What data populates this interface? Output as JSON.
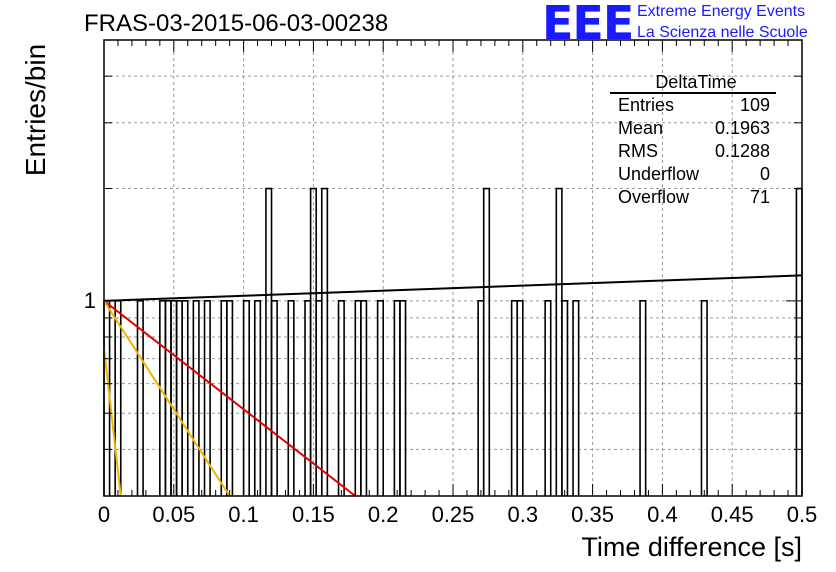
{
  "header": {
    "title": "FRAS-03-2015-06-03-00238",
    "logo_text": "EEE",
    "logo_line1": "Extreme Energy Events",
    "logo_line2": "La Scienza nelle Scuole",
    "logo_color": "#1a1aff"
  },
  "stats_box": {
    "title": "DeltaTime",
    "rows": [
      {
        "key": "Entries",
        "value": "109"
      },
      {
        "key": "Mean",
        "value": "0.1963"
      },
      {
        "key": "RMS",
        "value": "0.1288"
      },
      {
        "key": "Underflow",
        "value": "0"
      },
      {
        "key": "Overflow",
        "value": "71"
      }
    ]
  },
  "chart_data": {
    "type": "bar",
    "title": "FRAS-03-2015-06-03-00238",
    "xlabel": "Time difference [s]",
    "ylabel": "Entries/bin",
    "xlim": [
      0,
      0.5
    ],
    "ylim": [
      0.3,
      5
    ],
    "yscale": "log",
    "grid": true,
    "x_ticks": [
      "0",
      "0.05",
      "0.1",
      "0.15",
      "0.2",
      "0.25",
      "0.3",
      "0.35",
      "0.4",
      "0.45",
      "0.5"
    ],
    "x_tick_values": [
      0,
      0.05,
      0.1,
      0.15,
      0.2,
      0.25,
      0.3,
      0.35,
      0.4,
      0.45,
      0.5
    ],
    "y_ticks": [
      "1"
    ],
    "y_tick_values": [
      1
    ],
    "bin_width": 0.004,
    "bins": [
      {
        "x": 0.0,
        "y": 1
      },
      {
        "x": 0.008,
        "y": 1
      },
      {
        "x": 0.024,
        "y": 1
      },
      {
        "x": 0.04,
        "y": 1
      },
      {
        "x": 0.044,
        "y": 1
      },
      {
        "x": 0.048,
        "y": 1
      },
      {
        "x": 0.052,
        "y": 1
      },
      {
        "x": 0.056,
        "y": 1
      },
      {
        "x": 0.064,
        "y": 1
      },
      {
        "x": 0.072,
        "y": 1
      },
      {
        "x": 0.084,
        "y": 1
      },
      {
        "x": 0.088,
        "y": 1
      },
      {
        "x": 0.1,
        "y": 1
      },
      {
        "x": 0.108,
        "y": 1
      },
      {
        "x": 0.12,
        "y": 1
      },
      {
        "x": 0.132,
        "y": 1
      },
      {
        "x": 0.116,
        "y": 2
      },
      {
        "x": 0.148,
        "y": 2
      },
      {
        "x": 0.144,
        "y": 1
      },
      {
        "x": 0.152,
        "y": 1
      },
      {
        "x": 0.156,
        "y": 2
      },
      {
        "x": 0.168,
        "y": 1
      },
      {
        "x": 0.18,
        "y": 1
      },
      {
        "x": 0.184,
        "y": 1
      },
      {
        "x": 0.196,
        "y": 1
      },
      {
        "x": 0.208,
        "y": 1
      },
      {
        "x": 0.212,
        "y": 1
      },
      {
        "x": 0.272,
        "y": 2
      },
      {
        "x": 0.268,
        "y": 1
      },
      {
        "x": 0.292,
        "y": 1
      },
      {
        "x": 0.296,
        "y": 1
      },
      {
        "x": 0.316,
        "y": 1
      },
      {
        "x": 0.324,
        "y": 2
      },
      {
        "x": 0.328,
        "y": 1
      },
      {
        "x": 0.336,
        "y": 1
      },
      {
        "x": 0.384,
        "y": 1
      },
      {
        "x": 0.428,
        "y": 1
      },
      {
        "x": 0.496,
        "y": 2
      }
    ],
    "fit_lines": [
      {
        "color": "#000000",
        "points": [
          [
            0,
            1.0
          ],
          [
            0.5,
            1.17
          ]
        ]
      },
      {
        "color": "#e00000",
        "points": [
          [
            0,
            1.0
          ],
          [
            0.18,
            0.3
          ]
        ]
      },
      {
        "color": "#f0b400",
        "points": [
          [
            0,
            1.0
          ],
          [
            0.09,
            0.3
          ]
        ]
      },
      {
        "color": "#f0b400",
        "points": [
          [
            0,
            0.75
          ],
          [
            0.012,
            0.3
          ]
        ]
      }
    ]
  }
}
